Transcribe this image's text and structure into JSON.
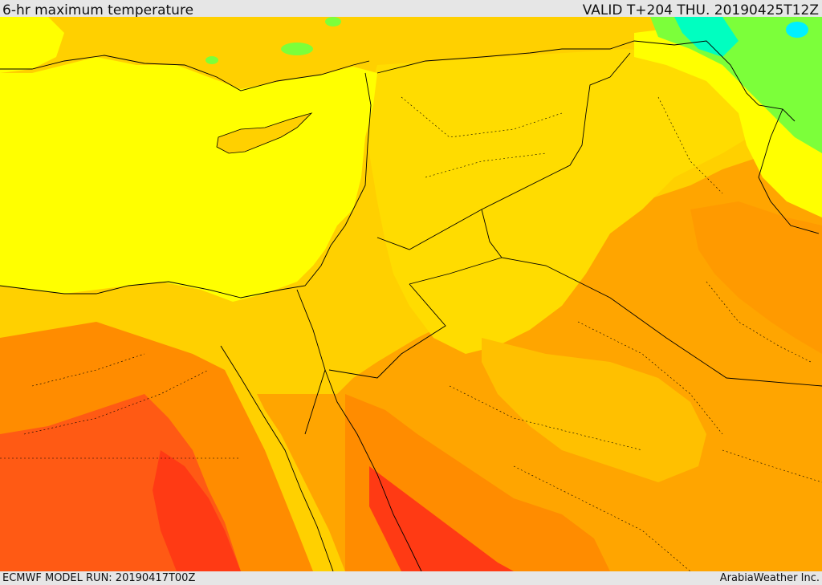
{
  "header": {
    "title": "6-hr maximum temperature",
    "valid": "VALID T+204 THU. 20190425T12Z"
  },
  "footer": {
    "model_run": "ECMWF MODEL RUN: 20190417T00Z",
    "credit": "ArabiaWeather Inc."
  },
  "colors": {
    "sea_yellow": "#ffff00",
    "warm_yellow": "#ffe000",
    "light_orange": "#ffd000",
    "orange": "#ffb000",
    "deep_orange": "#ff8c00",
    "red_orange": "#ff5a14",
    "red": "#ff3a14",
    "green": "#7cff3a",
    "cyan": "#00ffc0",
    "border_line": "#000000"
  }
}
